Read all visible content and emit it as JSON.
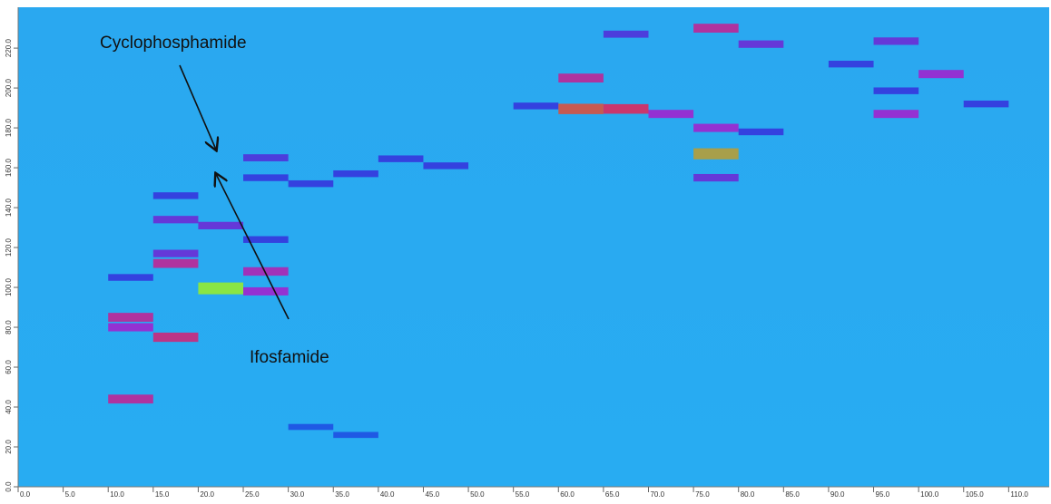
{
  "chart_data": {
    "type": "heatmap",
    "annotations": [
      "Cyclophosphamide",
      "Ifosfamide"
    ],
    "x": [
      10,
      10,
      10,
      10,
      15,
      15,
      15,
      15,
      15,
      20,
      20,
      25,
      25,
      25,
      25,
      25,
      30,
      30,
      35,
      35,
      40,
      45,
      55,
      60,
      60,
      65,
      70,
      75,
      75,
      75,
      75,
      80,
      80,
      90,
      95,
      95,
      95,
      100,
      105,
      65
    ],
    "y": [
      44,
      85,
      80,
      105,
      75,
      112,
      117,
      134,
      146,
      99.5,
      131,
      108,
      98,
      165,
      155,
      124,
      152,
      30,
      157,
      26,
      164.5,
      161,
      191,
      189.5,
      205,
      189.5,
      187,
      167,
      230,
      180,
      155,
      222,
      178,
      212,
      223.5,
      187,
      198.6,
      207,
      192,
      227
    ],
    "values": [
      0.6,
      0.6,
      0.5,
      0.3,
      0.65,
      0.6,
      0.4,
      0.4,
      0.3,
      1.0,
      0.4,
      0.55,
      0.5,
      0.35,
      0.3,
      0.3,
      0.3,
      0.2,
      0.3,
      0.2,
      0.3,
      0.3,
      0.3,
      0.8,
      0.6,
      0.7,
      0.5,
      0.9,
      0.6,
      0.5,
      0.4,
      0.4,
      0.3,
      0.3,
      0.4,
      0.5,
      0.3,
      0.5,
      0.3,
      0.35
    ],
    "colormap": [
      "#2aa6ee",
      "#1c3fe0",
      "#9a2ad0",
      "#e0304a",
      "#8fe83a"
    ],
    "xlim": [
      0,
      114.5
    ],
    "ylim": [
      0,
      240.5
    ],
    "xticks": [
      {
        "value": 0,
        "label": "0.0"
      },
      {
        "value": 5,
        "label": "5.0"
      },
      {
        "value": 10,
        "label": "10.0"
      },
      {
        "value": 15,
        "label": "15.0"
      },
      {
        "value": 20,
        "label": "20.0"
      },
      {
        "value": 25,
        "label": "25.0"
      },
      {
        "value": 30,
        "label": "30.0"
      },
      {
        "value": 35,
        "label": "35.0"
      },
      {
        "value": 40,
        "label": "40.0"
      },
      {
        "value": 45,
        "label": "45.0"
      },
      {
        "value": 50,
        "label": "50.0"
      },
      {
        "value": 55,
        "label": "55.0"
      },
      {
        "value": 60,
        "label": "60.0"
      },
      {
        "value": 65,
        "label": "65.0"
      },
      {
        "value": 70,
        "label": "70.0"
      },
      {
        "value": 75,
        "label": "75.0"
      },
      {
        "value": 80,
        "label": "80.0"
      },
      {
        "value": 85,
        "label": "85.0"
      },
      {
        "value": 90,
        "label": "90.0"
      },
      {
        "value": 95,
        "label": "95.0"
      },
      {
        "value": 100,
        "label": "100.0"
      },
      {
        "value": 105,
        "label": "105.0"
      },
      {
        "value": 110,
        "label": "110.0"
      }
    ],
    "yticks": [
      {
        "value": 0,
        "label": "0.0"
      },
      {
        "value": 20,
        "label": "20.0"
      },
      {
        "value": 40,
        "label": "40.0"
      },
      {
        "value": 60,
        "label": "60.0"
      },
      {
        "value": 80,
        "label": "80.0"
      },
      {
        "value": 100,
        "label": "100.0"
      },
      {
        "value": 120,
        "label": "120.0"
      },
      {
        "value": 140,
        "label": "140.0"
      },
      {
        "value": 160,
        "label": "160.0"
      },
      {
        "value": 180,
        "label": "180.0"
      },
      {
        "value": 200,
        "label": "200.0"
      },
      {
        "value": 220,
        "label": "220.0"
      }
    ],
    "bin_width": 5
  }
}
